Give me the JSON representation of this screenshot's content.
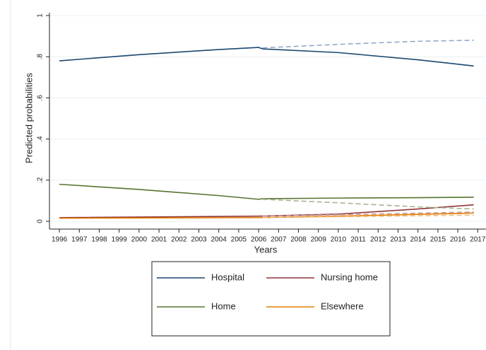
{
  "chart_data": {
    "type": "line",
    "x_label": "Years",
    "y_label": "Predicted probabilities",
    "xlim": [
      1995.5,
      2017.5
    ],
    "ylim": [
      0,
      1
    ],
    "xticks": [
      1996,
      1997,
      1998,
      1999,
      2000,
      2001,
      2002,
      2003,
      2004,
      2005,
      2006,
      2007,
      2008,
      2009,
      2010,
      2011,
      2012,
      2013,
      2014,
      2015,
      2016,
      2017
    ],
    "yticks": [
      0,
      {
        "value": 0.2,
        "label": ".2"
      },
      {
        "value": 0.4,
        "label": ".4"
      },
      {
        "value": 0.6,
        "label": ".6"
      },
      {
        "value": 0.8,
        "label": ".8"
      },
      1
    ],
    "grid": true,
    "series": [
      {
        "name": "Hospital",
        "color": "#1a476f",
        "dash": false,
        "x": [
          1996,
          2000,
          2004,
          2006,
          2006.2,
          2010,
          2014,
          2016.8
        ],
        "values": [
          0.78,
          0.81,
          0.835,
          0.845,
          0.838,
          0.82,
          0.785,
          0.755
        ]
      },
      {
        "name": "Nursing home",
        "color": "#90353b",
        "dash": false,
        "x": [
          1996,
          2006,
          2010,
          2014,
          2016.8
        ],
        "values": [
          0.018,
          0.025,
          0.035,
          0.06,
          0.08
        ]
      },
      {
        "name": "Home",
        "color": "#55752f",
        "dash": false,
        "x": [
          1996,
          2000,
          2004,
          2006,
          2006.2,
          2010,
          2014,
          2016.8
        ],
        "values": [
          0.18,
          0.155,
          0.125,
          0.107,
          0.11,
          0.113,
          0.115,
          0.117
        ]
      },
      {
        "name": "Elsewhere",
        "color": "#e37e00",
        "dash": false,
        "x": [
          1996,
          2006,
          2010,
          2016.8
        ],
        "values": [
          0.015,
          0.018,
          0.025,
          0.04
        ]
      },
      {
        "color": "#93a9c8",
        "dash": true,
        "x": [
          2006.2,
          2010,
          2014,
          2016.8
        ],
        "values": [
          0.843,
          0.86,
          0.875,
          0.88
        ]
      },
      {
        "color": "#a6b48f",
        "dash": true,
        "x": [
          2006.2,
          2010,
          2014,
          2016.8
        ],
        "values": [
          0.107,
          0.09,
          0.07,
          0.06
        ]
      },
      {
        "color": "#c9999c",
        "dash": true,
        "x": [
          2006.2,
          2016.8
        ],
        "values": [
          0.025,
          0.045
        ]
      },
      {
        "color": "#f0bd80",
        "dash": true,
        "x": [
          2006.2,
          2016.8
        ],
        "values": [
          0.018,
          0.03
        ]
      }
    ]
  }
}
